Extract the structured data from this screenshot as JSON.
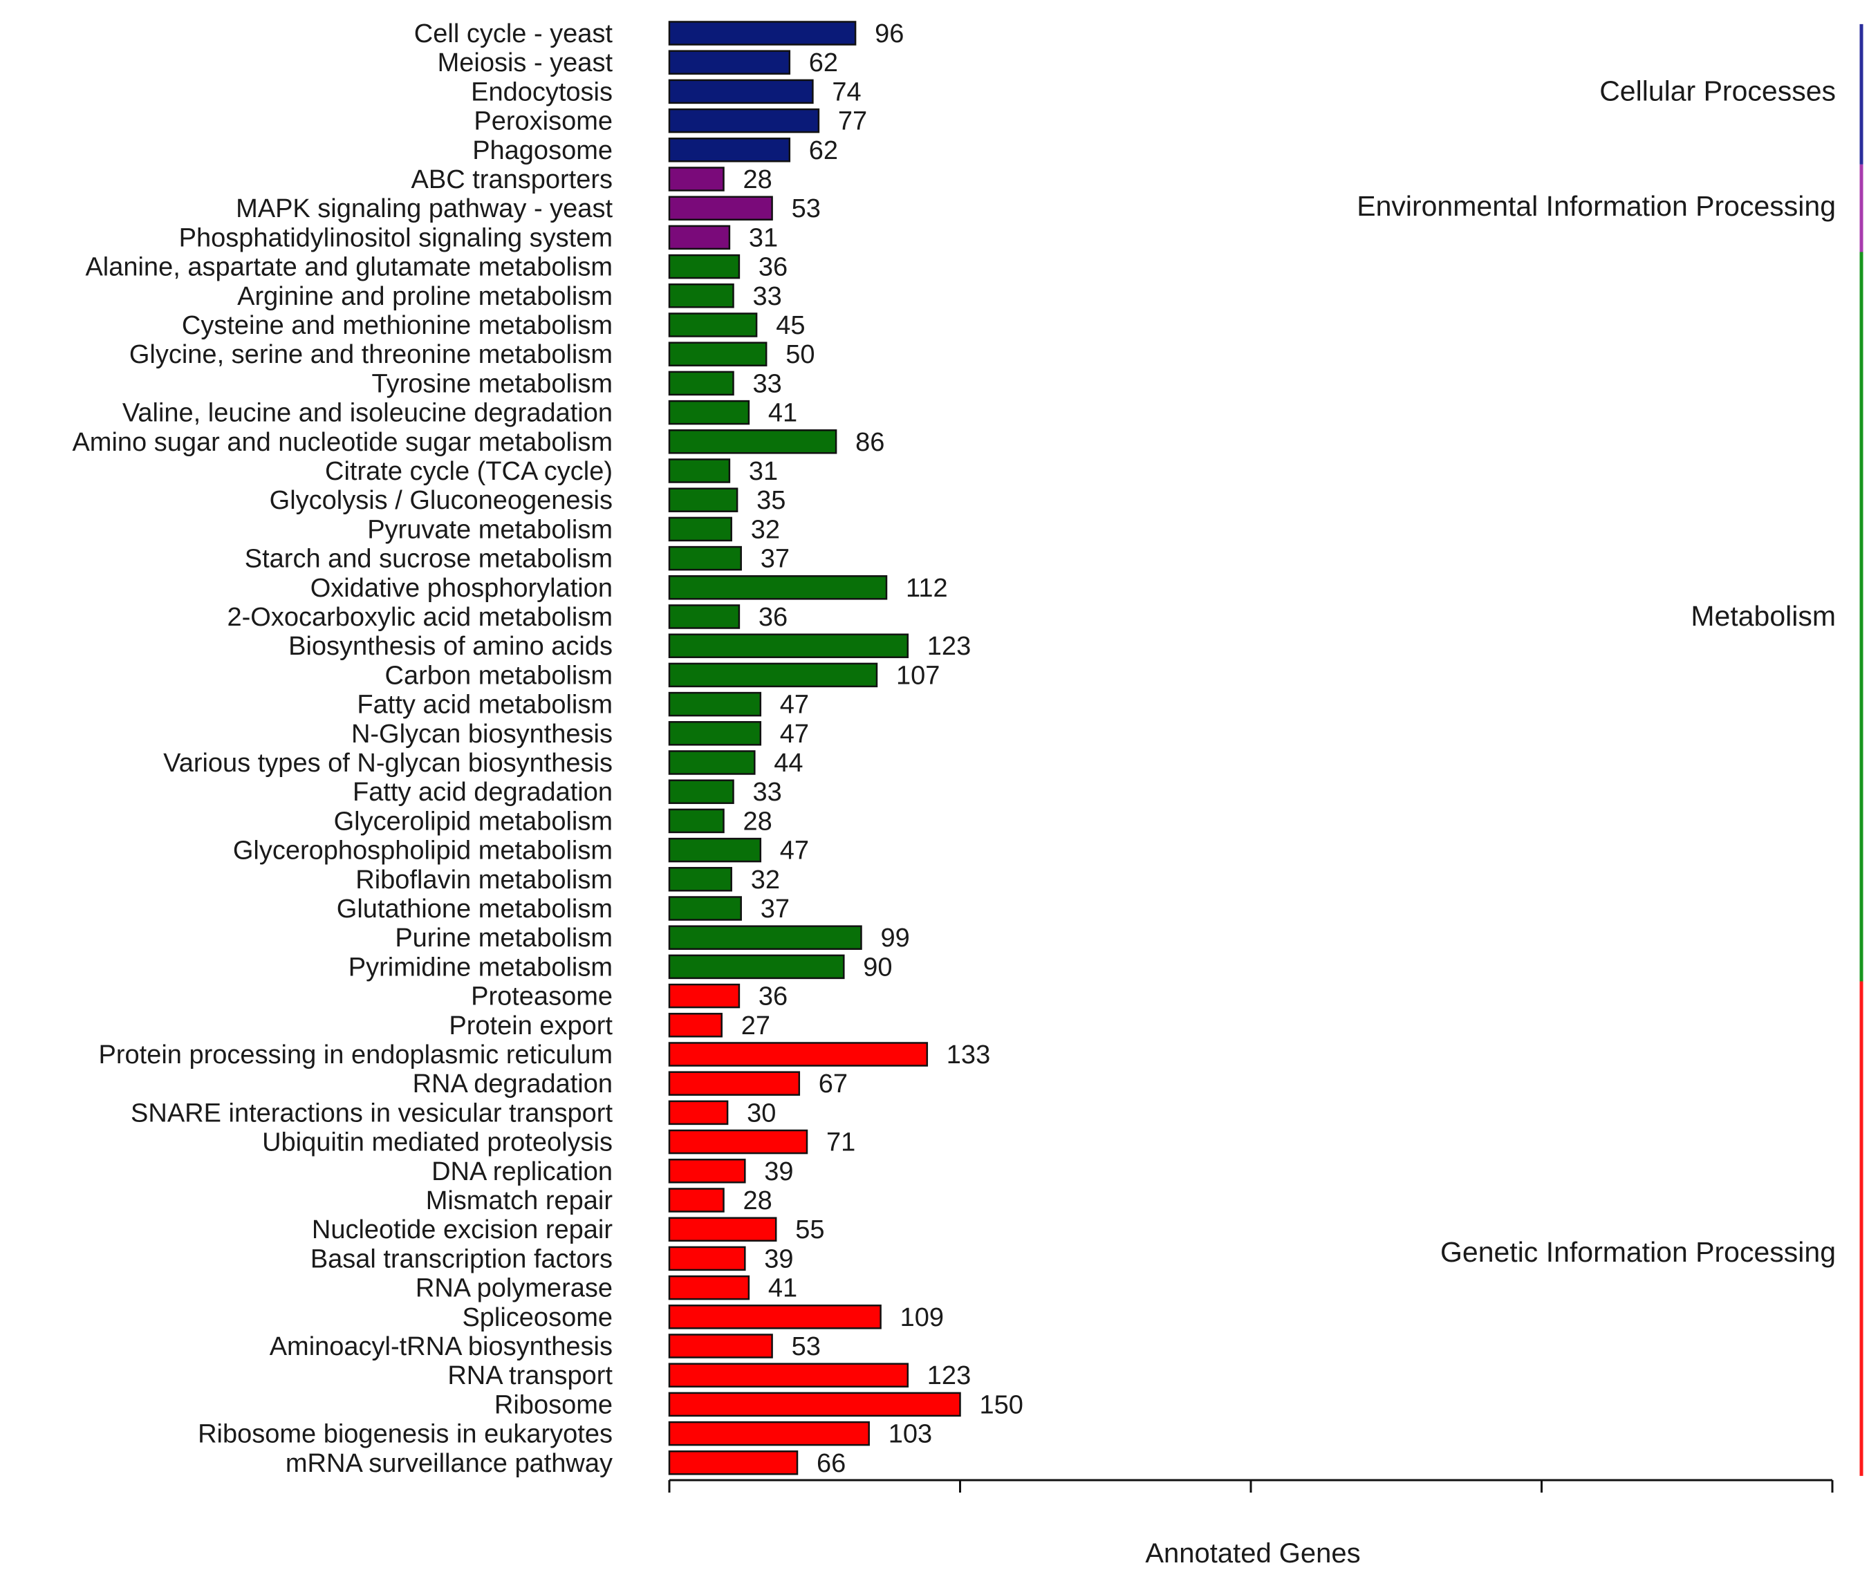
{
  "chart_data": {
    "type": "bar",
    "orientation": "horizontal",
    "title": "",
    "xlabel": "Annotated Genes",
    "ylabel": "",
    "xlim": [
      0,
      600
    ],
    "tick_labels_shown": false,
    "colors": {
      "Cellular Processes": "#0a1a78",
      "Environmental Information Processing": "#7a0a7a",
      "Metabolism": "#087008",
      "Genetic Information Processing": "#ff0000"
    },
    "group_bar_colors": {
      "Cellular Processes": "#2a2d9c",
      "Environmental Information Processing": "#a83bae",
      "Metabolism": "#17951d",
      "Genetic Information Processing": "#ff1a1a"
    },
    "groups": [
      {
        "name": "Cellular Processes",
        "categories": [
          "Cell cycle - yeast",
          "Meiosis - yeast",
          "Endocytosis",
          "Peroxisome",
          "Phagosome"
        ],
        "values": [
          96,
          62,
          74,
          77,
          62
        ]
      },
      {
        "name": "Environmental Information Processing",
        "categories": [
          "ABC transporters",
          "MAPK signaling pathway - yeast",
          "Phosphatidylinositol signaling system"
        ],
        "values": [
          28,
          53,
          31
        ]
      },
      {
        "name": "Metabolism",
        "categories": [
          "Alanine, aspartate and glutamate metabolism",
          "Arginine and proline metabolism",
          "Cysteine and methionine metabolism",
          "Glycine, serine and threonine metabolism",
          "Tyrosine metabolism",
          "Valine, leucine and isoleucine degradation",
          "Amino sugar and nucleotide sugar metabolism",
          "Citrate cycle (TCA cycle)",
          "Glycolysis / Gluconeogenesis",
          "Pyruvate metabolism",
          "Starch and sucrose metabolism",
          "Oxidative phosphorylation",
          "2-Oxocarboxylic acid metabolism",
          "Biosynthesis of amino acids",
          "Carbon metabolism",
          "Fatty acid metabolism",
          "N-Glycan biosynthesis",
          "Various types of N-glycan biosynthesis",
          "Fatty acid degradation",
          "Glycerolipid metabolism",
          "Glycerophospholipid metabolism",
          "Riboflavin metabolism",
          "Glutathione metabolism",
          "Purine metabolism",
          "Pyrimidine metabolism"
        ],
        "values": [
          36,
          33,
          45,
          50,
          33,
          41,
          86,
          31,
          35,
          32,
          37,
          112,
          36,
          123,
          107,
          47,
          47,
          44,
          33,
          28,
          47,
          32,
          37,
          99,
          90
        ]
      },
      {
        "name": "Genetic Information Processing",
        "categories": [
          "Proteasome",
          "Protein export",
          "Protein processing in endoplasmic reticulum",
          "RNA degradation",
          "SNARE interactions in vesicular transport",
          "Ubiquitin mediated proteolysis",
          "DNA replication",
          "Mismatch repair",
          "Nucleotide excision repair",
          "Basal transcription factors",
          "RNA polymerase",
          "Spliceosome",
          "Aminoacyl-tRNA biosynthesis",
          "RNA transport",
          "Ribosome",
          "Ribosome biogenesis in eukaryotes",
          "mRNA surveillance pathway"
        ],
        "values": [
          36,
          27,
          133,
          67,
          30,
          71,
          39,
          28,
          55,
          39,
          41,
          109,
          53,
          123,
          150,
          103,
          66
        ]
      }
    ]
  }
}
